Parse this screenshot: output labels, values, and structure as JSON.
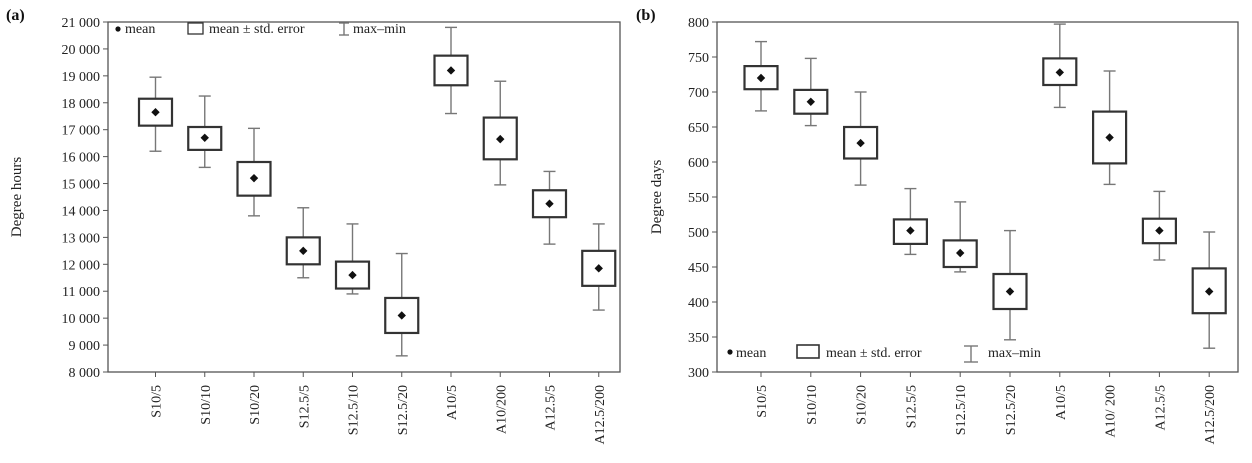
{
  "chart_data": [
    {
      "type": "box",
      "panel_label": "(a)",
      "ylabel": "Degree hours",
      "ylim": [
        8000,
        21000
      ],
      "yticks": [
        8000,
        9000,
        10000,
        11000,
        12000,
        13000,
        14000,
        15000,
        16000,
        17000,
        18000,
        19000,
        20000,
        21000
      ],
      "ytick_labels": [
        "8 000",
        "9 000",
        "10 000",
        "11 000",
        "12 000",
        "13 000",
        "14 000",
        "15 000",
        "16 000",
        "17 000",
        "18 000",
        "19 000",
        "20 000",
        "21 000"
      ],
      "categories": [
        "S10/5",
        "S10/10",
        "S10/20",
        "S12.5/5",
        "S12.5/10",
        "S12.5/20",
        "A10/5",
        "A10/200",
        "A12.5/5",
        "A12.5/200"
      ],
      "mean": [
        17650,
        16700,
        15200,
        12500,
        11600,
        10100,
        19200,
        16650,
        14250,
        11850
      ],
      "se_low": [
        17150,
        16250,
        14550,
        12000,
        11100,
        9450,
        18650,
        15900,
        13750,
        11200
      ],
      "se_high": [
        18150,
        17100,
        15800,
        13000,
        12100,
        10750,
        19750,
        17450,
        14750,
        12500
      ],
      "min": [
        16200,
        15600,
        13800,
        11500,
        10900,
        8600,
        17600,
        14950,
        12750,
        10300
      ],
      "max": [
        18950,
        18250,
        17050,
        14100,
        13500,
        12400,
        20800,
        18800,
        15450,
        13500
      ],
      "legend": {
        "mean": "mean",
        "se": "mean ± std. error",
        "range": "max–min",
        "position": "top"
      }
    },
    {
      "type": "box",
      "panel_label": "(b)",
      "ylabel": "Degree days",
      "ylim": [
        300,
        800
      ],
      "yticks": [
        300,
        350,
        400,
        450,
        500,
        550,
        600,
        650,
        700,
        750,
        800
      ],
      "ytick_labels": [
        "300",
        "350",
        "400",
        "450",
        "500",
        "550",
        "600",
        "650",
        "700",
        "750",
        "800"
      ],
      "categories": [
        "S10/5",
        "S10/10",
        "S10/20",
        "S12.5/5",
        "S12.5/10",
        "S12.5/20",
        "A10/5",
        "A10/ 200",
        "A12.5/5",
        "A12.5/200"
      ],
      "mean": [
        720,
        686,
        627,
        502,
        470,
        415,
        728,
        635,
        502,
        415
      ],
      "se_low": [
        704,
        669,
        605,
        483,
        450,
        390,
        710,
        598,
        484,
        384
      ],
      "se_high": [
        737,
        703,
        650,
        518,
        488,
        440,
        748,
        672,
        519,
        448
      ],
      "min": [
        673,
        652,
        567,
        468,
        443,
        346,
        678,
        568,
        460,
        334
      ],
      "max": [
        772,
        748,
        700,
        562,
        543,
        502,
        797,
        730,
        558,
        500
      ],
      "legend": {
        "mean": "mean",
        "se": "mean ± std. error",
        "range": "max–min",
        "position": "bottom-left"
      }
    }
  ]
}
